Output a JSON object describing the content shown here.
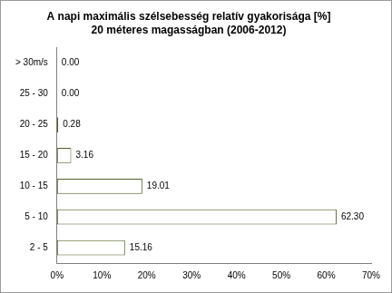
{
  "chart_data": {
    "type": "bar",
    "orientation": "horizontal",
    "title": "A napi maximális szélsebesség relatív gyakorisága [%]",
    "subtitle": "20 méteres magasságban (2006-2012)",
    "categories": [
      "> 30m/s",
      "25 - 30",
      "20 - 25",
      "15 - 20",
      "10 - 15",
      "5 - 10",
      "2 - 5"
    ],
    "values": [
      0.0,
      0.0,
      0.28,
      3.16,
      19.01,
      62.3,
      15.16
    ],
    "value_labels": [
      "0.00",
      "0.00",
      "0.28",
      "3.16",
      "19.01",
      "62.30",
      "15.16"
    ],
    "data_labels": true,
    "color": "#ffffff",
    "xlim": [
      0,
      70
    ],
    "xticks": [
      {
        "value": 0,
        "label": "0%"
      },
      {
        "value": 10,
        "label": "10%"
      },
      {
        "value": 20,
        "label": "20%"
      },
      {
        "value": 30,
        "label": "30%"
      },
      {
        "value": 40,
        "label": "40%"
      },
      {
        "value": 50,
        "label": "50%"
      },
      {
        "value": 60,
        "label": "60%"
      },
      {
        "value": 70,
        "label": "70%"
      }
    ],
    "grid": false
  }
}
